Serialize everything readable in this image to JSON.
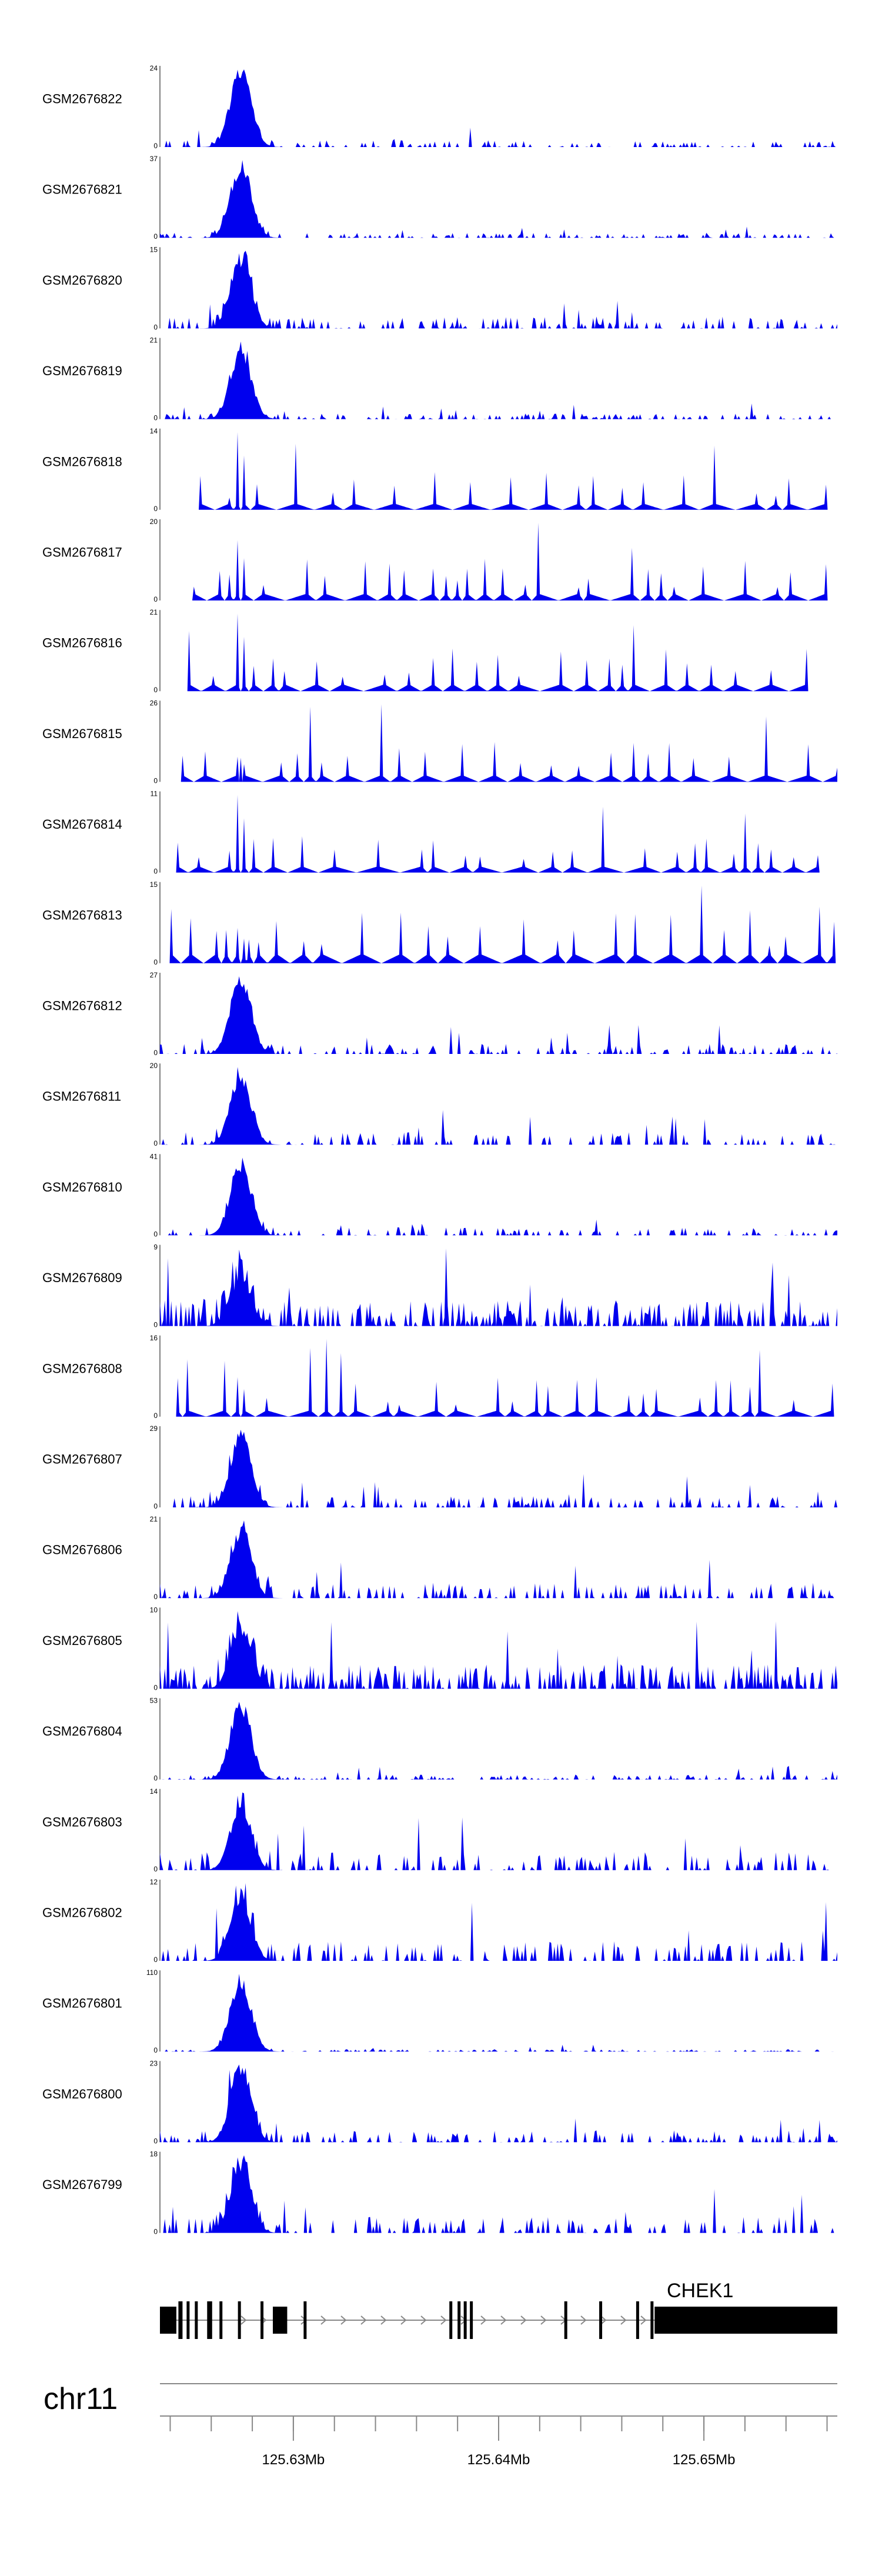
{
  "chart_data": {
    "type": "area",
    "title": "",
    "region": {
      "chromosome": "chr11",
      "start_mb": 125.6235,
      "end_mb": 125.6565
    },
    "color": "#0000ee",
    "tracks": [
      {
        "name": "GSM2676822",
        "ymax": 24,
        "profile": "normal",
        "seed": 1,
        "peak": 1.0,
        "noise": 0.08
      },
      {
        "name": "GSM2676821",
        "ymax": 37,
        "profile": "normal",
        "seed": 2,
        "peak": 1.0,
        "noise": 0.06
      },
      {
        "name": "GSM2676820",
        "ymax": 15,
        "profile": "normal",
        "seed": 3,
        "peak": 1.0,
        "noise": 0.14
      },
      {
        "name": "GSM2676819",
        "ymax": 21,
        "profile": "normal",
        "seed": 4,
        "peak": 1.0,
        "noise": 0.07
      },
      {
        "name": "GSM2676818",
        "ymax": 14,
        "profile": "sparse",
        "seed": 5,
        "peak": 1.0,
        "noise": 0.4
      },
      {
        "name": "GSM2676817",
        "ymax": 20,
        "profile": "sparse",
        "seed": 6,
        "peak": 0.7,
        "noise": 0.4
      },
      {
        "name": "GSM2676816",
        "ymax": 21,
        "profile": "sparse",
        "seed": 7,
        "peak": 0.9,
        "noise": 0.35
      },
      {
        "name": "GSM2676815",
        "ymax": 26,
        "profile": "sparse",
        "seed": 8,
        "peak": 0.3,
        "noise": 0.35
      },
      {
        "name": "GSM2676814",
        "ymax": 11,
        "profile": "sparse",
        "seed": 9,
        "peak": 1.0,
        "noise": 0.45
      },
      {
        "name": "GSM2676813",
        "ymax": 15,
        "profile": "sparse",
        "seed": 10,
        "peak": 0.3,
        "noise": 0.45
      },
      {
        "name": "GSM2676812",
        "ymax": 27,
        "profile": "normal",
        "seed": 11,
        "peak": 1.0,
        "noise": 0.12
      },
      {
        "name": "GSM2676811",
        "ymax": 20,
        "profile": "normal",
        "seed": 12,
        "peak": 0.95,
        "noise": 0.15
      },
      {
        "name": "GSM2676810",
        "ymax": 41,
        "profile": "normal",
        "seed": 13,
        "peak": 1.0,
        "noise": 0.1
      },
      {
        "name": "GSM2676809",
        "ymax": 9,
        "profile": "dense",
        "seed": 14,
        "peak": 1.0,
        "noise": 0.45
      },
      {
        "name": "GSM2676808",
        "ymax": 16,
        "profile": "sparse",
        "seed": 15,
        "peak": 0.5,
        "noise": 0.45
      },
      {
        "name": "GSM2676807",
        "ymax": 29,
        "profile": "normal",
        "seed": 16,
        "peak": 1.0,
        "noise": 0.14
      },
      {
        "name": "GSM2676806",
        "ymax": 21,
        "profile": "normal",
        "seed": 17,
        "peak": 1.0,
        "noise": 0.2
      },
      {
        "name": "GSM2676805",
        "ymax": 10,
        "profile": "dense",
        "seed": 18,
        "peak": 1.0,
        "noise": 0.35
      },
      {
        "name": "GSM2676804",
        "ymax": 53,
        "profile": "normal",
        "seed": 19,
        "peak": 1.0,
        "noise": 0.06
      },
      {
        "name": "GSM2676803",
        "ymax": 14,
        "profile": "normal",
        "seed": 20,
        "peak": 1.0,
        "noise": 0.25
      },
      {
        "name": "GSM2676802",
        "ymax": 12,
        "profile": "normal",
        "seed": 21,
        "peak": 1.0,
        "noise": 0.28
      },
      {
        "name": "GSM2676801",
        "ymax": 110,
        "profile": "normal",
        "seed": 22,
        "peak": 1.0,
        "noise": 0.03
      },
      {
        "name": "GSM2676800",
        "ymax": 23,
        "profile": "normal",
        "seed": 23,
        "peak": 1.0,
        "noise": 0.14
      },
      {
        "name": "GSM2676799",
        "ymax": 18,
        "profile": "normal",
        "seed": 24,
        "peak": 1.0,
        "noise": 0.2
      }
    ],
    "gene": {
      "name": "CHEK1",
      "strand": "+",
      "exons_mb": [
        [
          125.6235,
          125.6243
        ],
        [
          125.6244,
          125.6246
        ],
        [
          125.6248,
          125.6249
        ],
        [
          125.6252,
          125.6253
        ],
        [
          125.6258,
          125.62585
        ],
        [
          125.6259,
          125.62595
        ],
        [
          125.6264,
          125.62645
        ],
        [
          125.6273,
          125.62735
        ],
        [
          125.6284,
          125.62845
        ],
        [
          125.629,
          125.6297
        ],
        [
          125.6305,
          125.63055
        ],
        [
          125.6376,
          125.63765
        ],
        [
          125.638,
          125.63805
        ],
        [
          125.6383,
          125.63835
        ],
        [
          125.6386,
          125.63865
        ],
        [
          125.6432,
          125.64325
        ],
        [
          125.6449,
          125.64495
        ],
        [
          125.6467,
          125.64675
        ],
        [
          125.6474,
          125.64745
        ],
        [
          125.6476,
          125.6565
        ]
      ]
    },
    "xaxis": {
      "ticks_mb": [
        125.624,
        125.626,
        125.628,
        125.63,
        125.632,
        125.634,
        125.636,
        125.638,
        125.64,
        125.642,
        125.644,
        125.646,
        125.648,
        125.65,
        125.652,
        125.654,
        125.656
      ],
      "labeled_ticks": [
        {
          "mb": 125.63,
          "label": "125.63Mb"
        },
        {
          "mb": 125.64,
          "label": "125.64Mb"
        },
        {
          "mb": 125.65,
          "label": "125.65Mb"
        }
      ]
    }
  }
}
